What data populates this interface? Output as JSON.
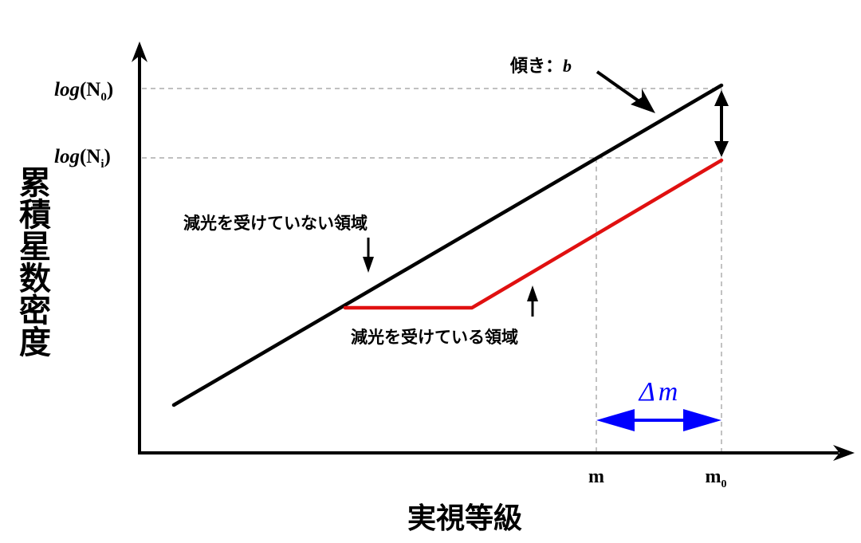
{
  "y_axis_label": "累積星数密度",
  "x_axis_label": "実視等級",
  "y_ticks": {
    "n0": {
      "prefix": "log",
      "open": "(N",
      "sub": "0",
      "close": ")"
    },
    "ni": {
      "prefix": "log",
      "open": "(N",
      "sub": "i",
      "close": ")"
    }
  },
  "x_ticks": {
    "m": {
      "main": "m",
      "sub": ""
    },
    "m0": {
      "main": "m",
      "sub": "0"
    }
  },
  "slope_label": {
    "text": "傾き：",
    "var": "b"
  },
  "unextincted_label": "減光を受けていない領域",
  "extincted_label": "減光を受けている領域",
  "delta_label": {
    "symbol": "Δ",
    "var": "m"
  },
  "colors": {
    "axis": "#000000",
    "unextincted_line": "#000000",
    "extincted_line": "#e01010",
    "delta_arrow": "#0000ff",
    "guides": "#9a9a9a"
  }
}
